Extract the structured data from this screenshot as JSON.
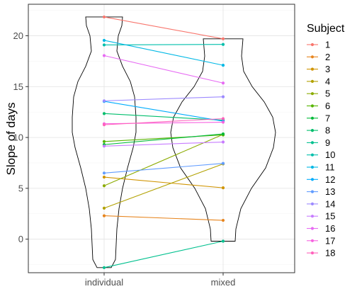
{
  "chart_data": {
    "type": "line",
    "subtype": "violin-with-paired-lines",
    "title": "",
    "xlabel": "",
    "ylabel": "Slope of days",
    "categories": [
      "individual",
      "mixed"
    ],
    "ylim": [
      -3.3,
      23.1
    ],
    "yticks": [
      0,
      5,
      10,
      15,
      20
    ],
    "grid": true,
    "legend": {
      "title": "Subject",
      "position": "right"
    },
    "series": [
      {
        "name": "1",
        "color": "#F8766D",
        "values": [
          21.85,
          19.7
        ]
      },
      {
        "name": "2",
        "color": "#E7851E",
        "values": [
          2.3,
          1.85
        ]
      },
      {
        "name": "3",
        "color": "#D09400",
        "values": [
          6.1,
          5.05
        ]
      },
      {
        "name": "4",
        "color": "#B2A100",
        "values": [
          3.05,
          7.4
        ]
      },
      {
        "name": "5",
        "color": "#8BAB00",
        "values": [
          5.25,
          10.3
        ]
      },
      {
        "name": "6",
        "color": "#55B400",
        "values": [
          9.6,
          10.25
        ]
      },
      {
        "name": "7",
        "color": "#00BA38",
        "values": [
          9.3,
          10.35
        ]
      },
      {
        "name": "8",
        "color": "#00BE6C",
        "values": [
          12.35,
          11.7
        ]
      },
      {
        "name": "9",
        "color": "#00C08E",
        "values": [
          -2.8,
          -0.2
        ]
      },
      {
        "name": "10",
        "color": "#00BFAB",
        "values": [
          19.1,
          19.15
        ]
      },
      {
        "name": "11",
        "color": "#00B8E5",
        "values": [
          19.55,
          17.1
        ]
      },
      {
        "name": "12",
        "color": "#00ACFC",
        "values": [
          13.55,
          11.6
        ]
      },
      {
        "name": "13",
        "color": "#619CFF",
        "values": [
          6.5,
          7.45
        ]
      },
      {
        "name": "14",
        "color": "#9D8AFF",
        "values": [
          13.6,
          14.0
        ]
      },
      {
        "name": "15",
        "color": "#C77CFF",
        "values": [
          9.15,
          9.55
        ]
      },
      {
        "name": "16",
        "color": "#E76BF3",
        "values": [
          18.05,
          15.35
        ]
      },
      {
        "name": "17",
        "color": "#F763E0",
        "values": [
          11.35,
          11.5
        ]
      },
      {
        "name": "18",
        "color": "#FF62BC",
        "values": [
          11.25,
          11.85
        ]
      }
    ]
  }
}
